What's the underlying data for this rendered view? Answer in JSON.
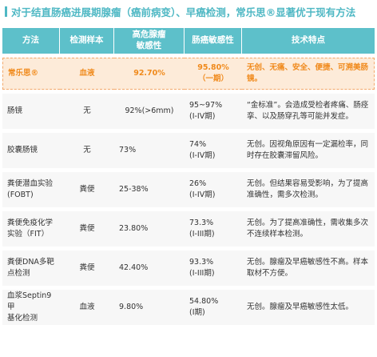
{
  "title": "对于结直肠癌进展期腺瘤（癌前病变）、早癌检测，常乐思®显著优于现有方法",
  "headers": [
    "方法",
    "检测样本",
    "高危腺瘤\n敏感性",
    "肠癌敏感性",
    "技术特点"
  ],
  "rows": [
    {
      "method": "常乐思®",
      "sample": "血液",
      "adenoma": "92.70%",
      "crc": "95.80%",
      "crc_sub": "（一期）",
      "feature": "无创、无痛、安全、便捷、可溯美肠镜。"
    },
    {
      "method": "肠镜",
      "sample": "无",
      "adenoma": "92%(>6mm)",
      "crc": "95~97%",
      "crc_sub": "(I-IV期)",
      "feature": "“金标准”。会造成受检者疼痛、肠痉挛、以及肠穿孔等可能并发症。"
    },
    {
      "method": "胶囊肠镜",
      "sample": "无",
      "adenoma": "73%",
      "crc": "74%",
      "crc_sub": "(I-IV期)",
      "feature": "无创。因视角原因有一定漏检率，同时存在胶囊滞留风险。"
    },
    {
      "method": "粪便潜血实验",
      "method_sub": "(FOBT)",
      "sample": "粪便",
      "adenoma": "25-38%",
      "crc": "26%",
      "crc_sub": "(I-IV期)",
      "feature": "无创。但结果容易受影响，为了提高准确性，需多次检测。"
    },
    {
      "method": "粪便免疫化学",
      "method_sub": "实验（FIT）",
      "sample": "粪便",
      "adenoma": "23.80%",
      "crc": "73.3%",
      "crc_sub": "(I-III期)",
      "feature": "无创。为了提高准确性，需收集多次不连续样本检测。"
    },
    {
      "method": "粪便DNA多靶",
      "method_sub": "点检测",
      "sample": "粪便",
      "adenoma": "42.40%",
      "crc": "93.3%",
      "crc_sub": "(I-III期)",
      "feature": "无创。腺瘤及早癌敏感性不高。样本取材不方便。"
    },
    {
      "method": "血浆Septin9甲",
      "method_sub": "基化检测",
      "sample": "血液",
      "adenoma": "9.80%",
      "crc": "54.80%",
      "crc_sub": "(I期)",
      "feature": "无创。腺瘤及早癌敏感性太低。"
    }
  ],
  "colors": {
    "accent": "#5dc0ca",
    "title": "#4fb8c4",
    "highlight_bg": "#fdebd9",
    "highlight_text": "#f08a1c",
    "row_bg": "#f7f7f7"
  }
}
